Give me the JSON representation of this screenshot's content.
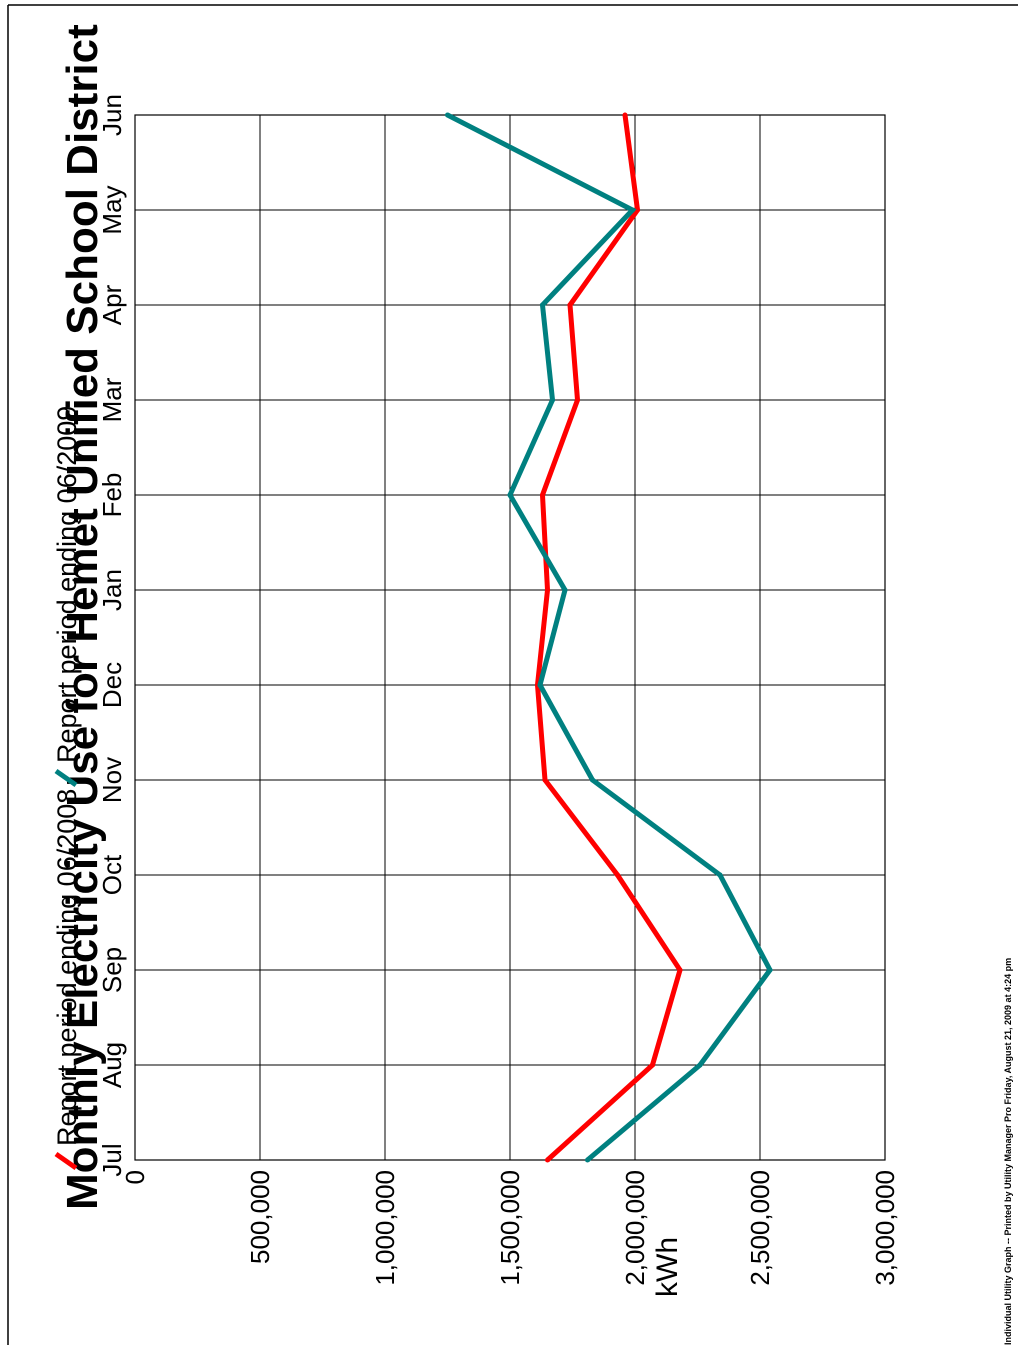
{
  "chart_data": {
    "type": "line",
    "title": "Monthly Electricity Use for Hemet Unified School District",
    "ylabel": "kWh",
    "xlabel": "",
    "categories": [
      "Jul",
      "Aug",
      "Sep",
      "Oct",
      "Nov",
      "Dec",
      "Jan",
      "Feb",
      "Mar",
      "Apr",
      "May",
      "Jun"
    ],
    "ylim": [
      0,
      3000000
    ],
    "y_ticks": [
      0,
      500000,
      1000000,
      1500000,
      2000000,
      2500000,
      3000000
    ],
    "y_tick_labels": [
      "0",
      "500,000",
      "1,000,000",
      "1,500,000",
      "2,000,000",
      "2,500,000",
      "3,000,000"
    ],
    "grid": true,
    "legend_position": "bottom",
    "orientation": "rotated-90-counterclockwise",
    "series": [
      {
        "name": "Report period ending 06/2008",
        "color": "#ff0000",
        "values": [
          1650000,
          2070000,
          2180000,
          1930000,
          1640000,
          1610000,
          1650000,
          1630000,
          1770000,
          1740000,
          2010000,
          1960000
        ]
      },
      {
        "name": "Report period ending 06/2009",
        "color": "#008080",
        "values": [
          1810000,
          2260000,
          2540000,
          2340000,
          1830000,
          1620000,
          1720000,
          1500000,
          1670000,
          1630000,
          1990000,
          1250000
        ]
      }
    ]
  },
  "footer": "Individual Utility Graph -- Printed by Utility Manager Pro Friday, August 21, 2009 at 4:24 pm"
}
